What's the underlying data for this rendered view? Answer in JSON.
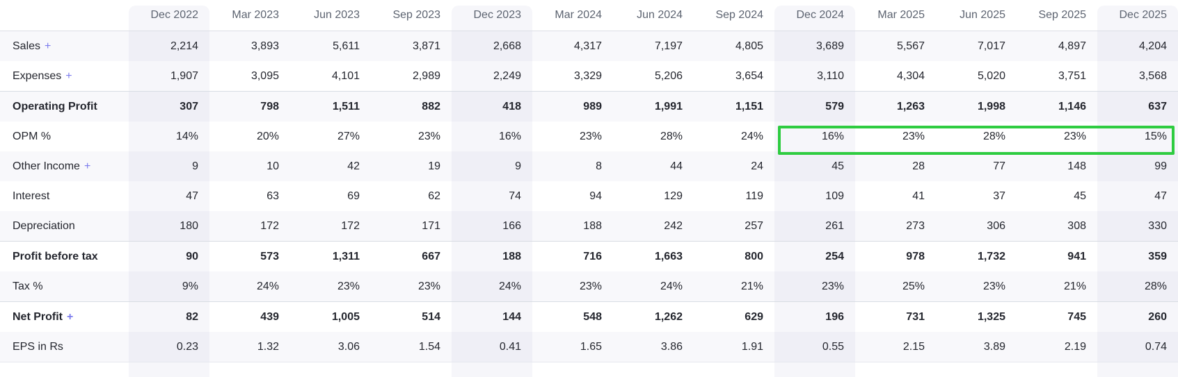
{
  "page": {
    "background": "#ffffff",
    "description": "Quarterly results financial table"
  },
  "colors": {
    "highlight_border": "#2ecc40",
    "plus_link": "#7b7bed",
    "header_text": "#5c6370",
    "body_text": "#24262e",
    "row_stripe": "#f6f6fa",
    "december_column_band": "#f3f3f9"
  },
  "table": {
    "columns": [
      "Dec 2022",
      "Mar 2023",
      "Jun 2023",
      "Sep 2023",
      "Dec 2023",
      "Mar 2024",
      "Jun 2024",
      "Sep 2024",
      "Dec 2024",
      "Mar 2025",
      "Jun 2025",
      "Sep 2025",
      "Dec 2025"
    ],
    "highlighted_columns": [
      "Dec 2022",
      "Dec 2023",
      "Dec 2024",
      "Dec 2025"
    ],
    "rows": [
      {
        "label": "Sales",
        "plus": "+",
        "bold": false,
        "values": [
          "2,214",
          "3,893",
          "5,611",
          "3,871",
          "2,668",
          "4,317",
          "7,197",
          "4,805",
          "3,689",
          "5,567",
          "7,017",
          "4,897",
          "4,204"
        ]
      },
      {
        "label": "Expenses",
        "plus": "+",
        "bold": false,
        "values": [
          "1,907",
          "3,095",
          "4,101",
          "2,989",
          "2,249",
          "3,329",
          "5,206",
          "3,654",
          "3,110",
          "4,304",
          "5,020",
          "3,751",
          "3,568"
        ]
      },
      {
        "label": "Operating Profit",
        "bold": true,
        "values": [
          "307",
          "798",
          "1,511",
          "882",
          "418",
          "989",
          "1,991",
          "1,151",
          "579",
          "1,263",
          "1,998",
          "1,146",
          "637"
        ]
      },
      {
        "label": "OPM %",
        "bold": false,
        "values": [
          "14%",
          "20%",
          "27%",
          "23%",
          "16%",
          "23%",
          "28%",
          "24%",
          "16%",
          "23%",
          "28%",
          "23%",
          "15%"
        ]
      },
      {
        "label": "Other Income",
        "plus": "+",
        "bold": false,
        "values": [
          "9",
          "10",
          "42",
          "19",
          "9",
          "8",
          "44",
          "24",
          "45",
          "28",
          "77",
          "148",
          "99"
        ]
      },
      {
        "label": "Interest",
        "bold": false,
        "values": [
          "47",
          "63",
          "69",
          "62",
          "74",
          "94",
          "129",
          "119",
          "109",
          "41",
          "37",
          "45",
          "47"
        ]
      },
      {
        "label": "Depreciation",
        "bold": false,
        "values": [
          "180",
          "172",
          "172",
          "171",
          "166",
          "188",
          "242",
          "257",
          "261",
          "273",
          "306",
          "308",
          "330"
        ]
      },
      {
        "label": "Profit before tax",
        "bold": true,
        "values": [
          "90",
          "573",
          "1,311",
          "667",
          "188",
          "716",
          "1,663",
          "800",
          "254",
          "978",
          "1,732",
          "941",
          "359"
        ]
      },
      {
        "label": "Tax %",
        "bold": false,
        "values": [
          "9%",
          "24%",
          "23%",
          "23%",
          "24%",
          "23%",
          "24%",
          "21%",
          "23%",
          "25%",
          "23%",
          "21%",
          "28%"
        ]
      },
      {
        "label": "Net Profit",
        "plus": "+",
        "bold": true,
        "values": [
          "82",
          "439",
          "1,005",
          "514",
          "144",
          "548",
          "1,262",
          "629",
          "196",
          "731",
          "1,325",
          "745",
          "260"
        ]
      },
      {
        "label": "EPS in Rs",
        "bold": false,
        "values": [
          "0.23",
          "1.32",
          "3.06",
          "1.54",
          "0.41",
          "1.65",
          "3.86",
          "1.91",
          "0.55",
          "2.15",
          "3.89",
          "2.19",
          "0.74"
        ]
      }
    ]
  },
  "annotation": {
    "type": "highlight-rectangle",
    "border_color": "#2ecc40",
    "row_label": "OPM %",
    "from_column": "Dec 2024",
    "to_column": "Dec 2025",
    "highlighted_values": [
      "16%",
      "23%",
      "28%",
      "23%",
      "15%"
    ]
  }
}
